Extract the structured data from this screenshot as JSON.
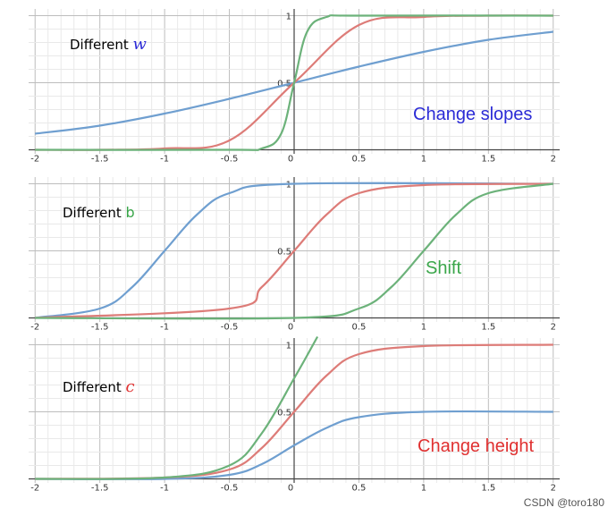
{
  "credit": "CSDN @toro180",
  "colors": {
    "blue": "#6f9fd0",
    "red": "#dd7c78",
    "green": "#6cb27a",
    "grid": "#cfcfcf",
    "axis": "#444444",
    "annot_blue": "#2b2bd6",
    "annot_green": "#3aa64a",
    "annot_red": "#e03030"
  },
  "chart_data": [
    {
      "type": "line",
      "title_prefix": "Different",
      "title_param": "w",
      "param_color": "#2b2bd6",
      "annotation": "Change slopes",
      "annotation_color": "#2b2bd6",
      "xlim": [
        -2.05,
        2.05
      ],
      "ylim": [
        -0.03,
        1.05
      ],
      "x_ticks": [
        "-2",
        "-1.5",
        "-1",
        "-0.5",
        "0",
        "0.5",
        "1",
        "1.5",
        "2"
      ],
      "y_ticks": [
        "0.5",
        "1"
      ],
      "series": [
        {
          "color": "blue",
          "values": {
            "x": [
              -2,
              -1.5,
              -1,
              -0.5,
              0,
              0.5,
              1,
              1.5,
              2
            ],
            "y": [
              0.12,
              0.18,
              0.27,
              0.38,
              0.5,
              0.62,
              0.73,
              0.82,
              0.88
            ]
          }
        },
        {
          "color": "red",
          "values": {
            "x": [
              -2,
              -1.5,
              -1,
              -0.5,
              0,
              0.5,
              1,
              1.5,
              2
            ],
            "y": [
              0.0,
              0.0,
              0.01,
              0.07,
              0.5,
              0.93,
              0.99,
              1.0,
              1.0
            ]
          }
        },
        {
          "color": "green",
          "values": {
            "x": [
              -2,
              -0.5,
              -0.25,
              -0.1,
              0,
              0.1,
              0.25,
              0.5,
              2
            ],
            "y": [
              0.0,
              0.0,
              0.01,
              0.12,
              0.5,
              0.88,
              0.99,
              1.0,
              1.0
            ]
          }
        }
      ]
    },
    {
      "type": "line",
      "title_prefix": "Different",
      "title_param": "b",
      "param_color": "#3aa64a",
      "annotation": "Shift",
      "annotation_color": "#3aa64a",
      "xlim": [
        -2.05,
        2.05
      ],
      "ylim": [
        -0.03,
        1.05
      ],
      "x_ticks": [
        "-2",
        "-1.5",
        "-1",
        "-0.5",
        "0",
        "0.5",
        "1",
        "1.5",
        "2"
      ],
      "y_ticks": [
        "0.5",
        "1"
      ],
      "series": [
        {
          "color": "blue",
          "values": {
            "x": [
              -2,
              -1.5,
              -1.25,
              -1,
              -0.75,
              -0.5,
              0,
              2
            ],
            "y": [
              0.0,
              0.07,
              0.23,
              0.5,
              0.77,
              0.93,
              1.0,
              1.0
            ]
          }
        },
        {
          "color": "red",
          "values": {
            "x": [
              -2,
              -0.5,
              -0.25,
              0,
              0.25,
              0.5,
              1,
              2
            ],
            "y": [
              0.0,
              0.07,
              0.23,
              0.5,
              0.77,
              0.93,
              0.99,
              1.0
            ]
          }
        },
        {
          "color": "green",
          "values": {
            "x": [
              -2,
              0,
              0.5,
              0.75,
              1,
              1.25,
              1.5,
              2
            ],
            "y": [
              0.0,
              0.0,
              0.07,
              0.23,
              0.5,
              0.77,
              0.93,
              1.0
            ]
          }
        }
      ]
    },
    {
      "type": "line",
      "title_prefix": "Different",
      "title_param": "c",
      "param_color": "#e03030",
      "annotation": "Change height",
      "annotation_color": "#e03030",
      "xlim": [
        -2.05,
        2.05
      ],
      "ylim": [
        -0.03,
        1.05
      ],
      "x_ticks": [
        "-2",
        "-1.5",
        "-1",
        "-0.5",
        "0",
        "0.5",
        "1",
        "1.5",
        "2"
      ],
      "y_ticks": [
        "0.5",
        "1"
      ],
      "series": [
        {
          "color": "blue",
          "values": {
            "x": [
              -2,
              -1,
              -0.5,
              -0.25,
              0,
              0.25,
              0.5,
              1,
              2
            ],
            "y": [
              0.0,
              0.0,
              0.03,
              0.11,
              0.25,
              0.38,
              0.46,
              0.5,
              0.5
            ]
          }
        },
        {
          "color": "red",
          "values": {
            "x": [
              -2,
              -1,
              -0.5,
              -0.25,
              0,
              0.25,
              0.5,
              1,
              2
            ],
            "y": [
              0.0,
              0.01,
              0.07,
              0.23,
              0.5,
              0.77,
              0.93,
              0.99,
              1.0
            ]
          }
        },
        {
          "color": "green",
          "values": {
            "x": [
              -2,
              -1,
              -0.5,
              -0.25,
              0,
              0.1,
              0.18
            ],
            "y": [
              0.0,
              0.01,
              0.1,
              0.34,
              0.75,
              0.92,
              1.06
            ]
          }
        }
      ]
    }
  ]
}
